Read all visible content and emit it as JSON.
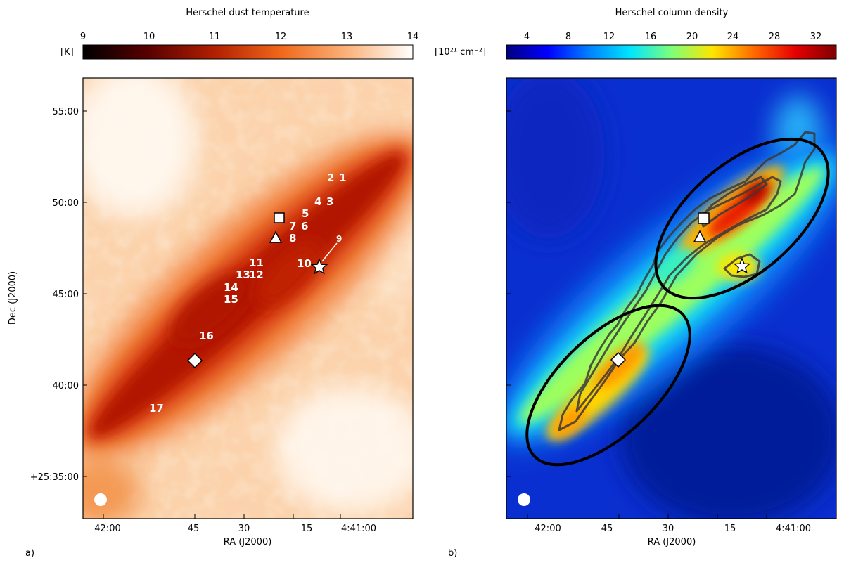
{
  "panels": [
    {
      "id": "a",
      "panel_label": "a)",
      "title": "Herschel dust temperature",
      "colorbar": {
        "unit": "[K]",
        "ticks": [
          "9",
          "10",
          "11",
          "12",
          "13",
          "14"
        ],
        "range": [
          9,
          14
        ],
        "colors": [
          "#000000",
          "#5a0000",
          "#b22000",
          "#f0681a",
          "#fbb27a",
          "#ffffff"
        ]
      },
      "xlabel": "RA (J2000)",
      "ylabel": "Dec (J2000)",
      "xticks": [
        "42:00",
        "45",
        "30",
        "15",
        "4:41:00"
      ],
      "yticks": [
        "55:00",
        "50:00",
        "45:00",
        "40:00",
        "+25:35:00"
      ],
      "source_labels": [
        "2",
        "1",
        "4",
        "3",
        "5",
        "7",
        "6",
        "8",
        "9",
        "10",
        "11",
        "13",
        "12",
        "14",
        "15",
        "16",
        "17"
      ]
    },
    {
      "id": "b",
      "panel_label": "b)",
      "title": "Herschel column density",
      "colorbar": {
        "unit": "[10²¹ cm⁻²]",
        "ticks": [
          "4",
          "8",
          "12",
          "16",
          "20",
          "24",
          "28",
          "32"
        ],
        "range": [
          2,
          34
        ],
        "colors": [
          "#00007f",
          "#0000ff",
          "#0080ff",
          "#00e5ff",
          "#7dff7a",
          "#ffe600",
          "#ff6a00",
          "#e60000",
          "#7f0000"
        ]
      },
      "xlabel": "RA (J2000)",
      "xticks": [
        "42:00",
        "45",
        "30",
        "15",
        "4:41:00"
      ]
    }
  ],
  "colors": {
    "temp_background": "#fbd2ab",
    "temp_filament": "#c01200",
    "coldens_background": "#0a2fd0",
    "contour": "#3a3a3a"
  },
  "markers": [
    "square",
    "triangle",
    "star",
    "diamond",
    "beam"
  ]
}
